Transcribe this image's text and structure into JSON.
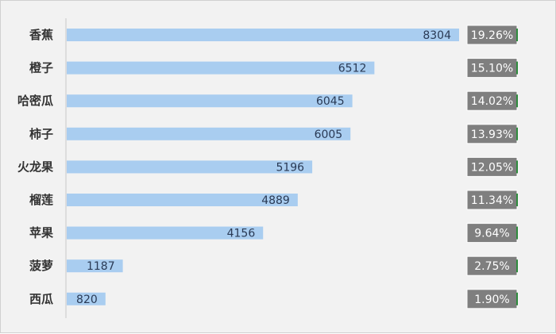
{
  "chart_data": {
    "type": "bar",
    "orientation": "horizontal",
    "categories": [
      "香蕉",
      "橙子",
      "哈密瓜",
      "柿子",
      "火龙果",
      "榴莲",
      "苹果",
      "菠萝",
      "西瓜"
    ],
    "values": [
      8304,
      6512,
      6045,
      6005,
      5196,
      4889,
      4156,
      1187,
      820
    ],
    "percent_labels": [
      "19.26%",
      "15.10%",
      "14.02%",
      "13.93%",
      "12.05%",
      "11.34%",
      "9.64%",
      "2.75%",
      "1.90%"
    ],
    "percent_values": [
      19.26,
      15.1,
      14.02,
      13.93,
      12.05,
      11.34,
      9.64,
      2.75,
      1.9
    ],
    "xlim": [
      0,
      8304
    ],
    "grid": false,
    "legend": "none",
    "colors": {
      "bar": "#a9cdf0",
      "percent_box": "#7f7f7f",
      "percent_accent": "#2e8b3d",
      "axis": "#c8c8c8",
      "background": "#f2f2f2"
    }
  }
}
